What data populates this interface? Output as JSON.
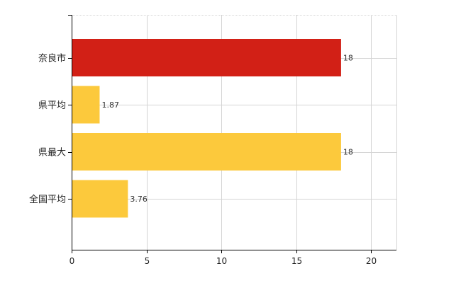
{
  "chart_data": {
    "type": "bar",
    "orientation": "horizontal",
    "title": "",
    "xlabel": "",
    "ylabel": "",
    "categories": [
      "奈良市",
      "県平均",
      "県最大",
      "全国平均"
    ],
    "values": [
      18,
      1.87,
      18,
      3.76
    ],
    "value_labels": [
      "18",
      "1.87",
      "18",
      "3.76"
    ],
    "bar_colors": [
      "#d22016",
      "#fcc93c",
      "#fcc93c",
      "#fcc93c"
    ],
    "xlim": [
      0,
      21.7
    ],
    "x_ticks": [
      0,
      5,
      10,
      15,
      20
    ],
    "x_tick_labels": [
      "0",
      "5",
      "10",
      "15",
      "20"
    ],
    "grid": "vertical-and-horizontal",
    "legend": "none"
  }
}
